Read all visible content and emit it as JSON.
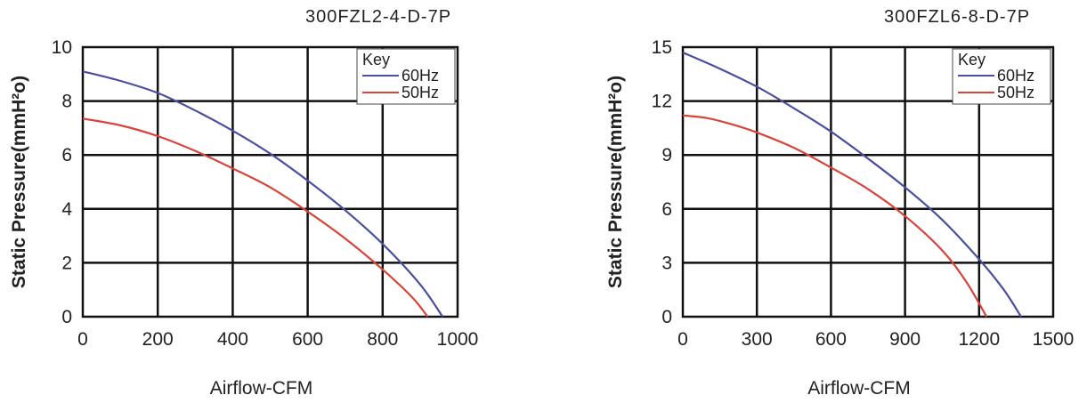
{
  "chart_data": [
    {
      "type": "line",
      "title": "300FZL2-4-D-7P",
      "xlabel": "Airflow-CFM",
      "ylabel": "Static Pressure(mmH²o)",
      "xlim": [
        0,
        1000
      ],
      "ylim": [
        0,
        10
      ],
      "xticks": [
        0,
        200,
        400,
        600,
        800,
        1000
      ],
      "yticks": [
        0,
        2,
        4,
        6,
        8,
        10
      ],
      "grid": true,
      "legend": {
        "title": "Key",
        "placement": "top-right"
      },
      "series": [
        {
          "name": "60Hz",
          "color": "#4a4fa0",
          "x": [
            0,
            100,
            200,
            300,
            400,
            500,
            600,
            700,
            800,
            900,
            960
          ],
          "y": [
            9.1,
            8.75,
            8.3,
            7.65,
            6.9,
            6.05,
            5.05,
            3.95,
            2.7,
            1.2,
            0
          ]
        },
        {
          "name": "50Hz",
          "color": "#d9443a",
          "x": [
            0,
            100,
            200,
            300,
            400,
            500,
            600,
            700,
            800,
            880,
            920
          ],
          "y": [
            7.35,
            7.1,
            6.7,
            6.15,
            5.5,
            4.8,
            3.9,
            2.9,
            1.75,
            0.7,
            0
          ]
        }
      ]
    },
    {
      "type": "line",
      "title": "300FZL6-8-D-7P",
      "xlabel": "Airflow-CFM",
      "ylabel": "Static Pressure(mmH²o)",
      "xlim": [
        0,
        1500
      ],
      "ylim": [
        0,
        15
      ],
      "xticks": [
        0,
        300,
        600,
        900,
        1200,
        1500
      ],
      "yticks": [
        0,
        3,
        6,
        9,
        12,
        15
      ],
      "grid": true,
      "legend": {
        "title": "Key",
        "placement": "top-right"
      },
      "series": [
        {
          "name": "60Hz",
          "color": "#4a4fa0",
          "x": [
            0,
            150,
            300,
            450,
            600,
            750,
            900,
            1050,
            1200,
            1300,
            1370
          ],
          "y": [
            14.7,
            13.8,
            12.8,
            11.6,
            10.3,
            8.8,
            7.2,
            5.4,
            3.2,
            1.5,
            0
          ]
        },
        {
          "name": "50Hz",
          "color": "#d9443a",
          "x": [
            0,
            100,
            200,
            300,
            450,
            600,
            750,
            900,
            1050,
            1150,
            1230
          ],
          "y": [
            11.2,
            11.05,
            10.7,
            10.25,
            9.4,
            8.3,
            7.1,
            5.6,
            3.7,
            1.9,
            0
          ]
        }
      ]
    }
  ]
}
